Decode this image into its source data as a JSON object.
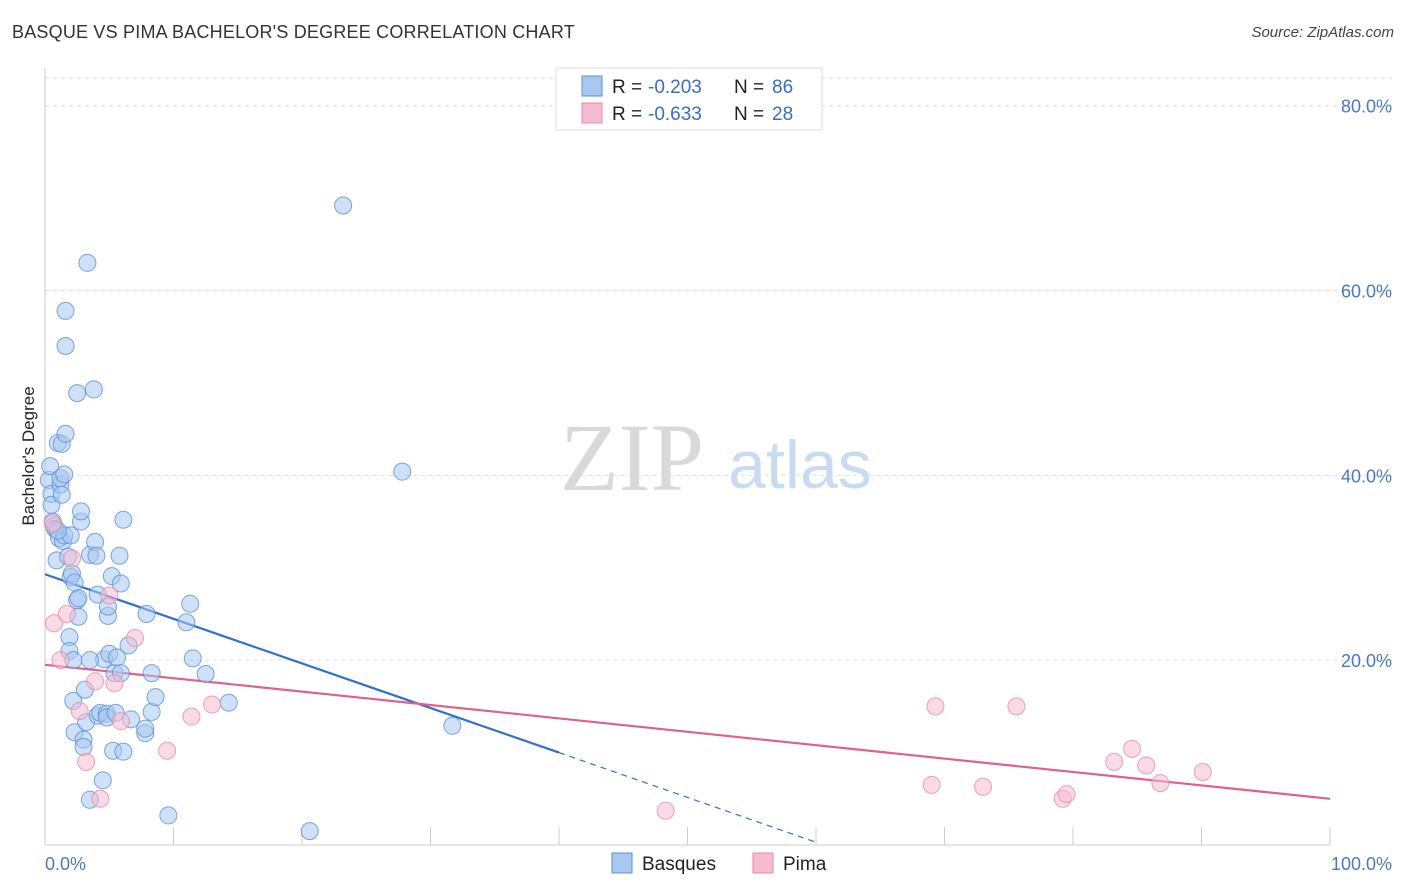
{
  "title": "BASQUE VS PIMA BACHELOR'S DEGREE CORRELATION CHART",
  "source": "Source: ZipAtlas.com",
  "watermark": {
    "zip": "ZIP",
    "atlas": "atlas"
  },
  "legend": {
    "r_label": "R =",
    "n_label": "N =",
    "rows": [
      {
        "r": "-0.203",
        "n": "86"
      },
      {
        "r": "-0.633",
        "n": "28"
      }
    ]
  },
  "colors": {
    "basques_fill": "#a8c8f0",
    "basques_stroke": "#5b8fd8",
    "basques_line": "#2f6fd0",
    "pima_fill": "#f5bccf",
    "pima_stroke": "#e88aaa",
    "pima_line": "#e0608a",
    "grid": "#dddddd",
    "axis_text": "#4a78c8"
  },
  "chart_data": {
    "type": "scatter",
    "title": "BASQUE VS PIMA BACHELOR'S DEGREE CORRELATION CHART",
    "xlabel": "",
    "ylabel": "Bachelor's Degree",
    "xlim": [
      0,
      100
    ],
    "ylim": [
      0,
      83
    ],
    "x_tick_labels": [
      "0.0%",
      "100.0%"
    ],
    "y_ticks": [
      20,
      40,
      60,
      80
    ],
    "y_tick_labels": [
      "20.0%",
      "40.0%",
      "60.0%",
      "80.0%"
    ],
    "grid": true,
    "legend_position": "bottom",
    "series": [
      {
        "name": "Basques",
        "points": [
          [
            0.3,
            39.5
          ],
          [
            0.4,
            41.0
          ],
          [
            0.5,
            38.0
          ],
          [
            0.5,
            36.8
          ],
          [
            0.6,
            35.0
          ],
          [
            0.7,
            34.5
          ],
          [
            0.8,
            34.2
          ],
          [
            0.9,
            30.8
          ],
          [
            1.0,
            43.5
          ],
          [
            1.1,
            33.2
          ],
          [
            1.2,
            39.0
          ],
          [
            1.2,
            39.7
          ],
          [
            1.3,
            37.9
          ],
          [
            1.3,
            43.4
          ],
          [
            1.4,
            32.9
          ],
          [
            1.5,
            40.1
          ],
          [
            1.5,
            33.5
          ],
          [
            1.6,
            44.5
          ],
          [
            1.6,
            57.8
          ],
          [
            1.6,
            54.0
          ],
          [
            1.8,
            31.2
          ],
          [
            1.9,
            22.5
          ],
          [
            1.9,
            21.0
          ],
          [
            2.0,
            29.0
          ],
          [
            2.0,
            33.5
          ],
          [
            2.1,
            29.4
          ],
          [
            2.2,
            20.0
          ],
          [
            2.2,
            15.6
          ],
          [
            2.3,
            28.4
          ],
          [
            2.3,
            12.2
          ],
          [
            2.5,
            26.5
          ],
          [
            2.5,
            48.9
          ],
          [
            2.6,
            26.7
          ],
          [
            2.6,
            24.7
          ],
          [
            2.8,
            35.0
          ],
          [
            2.8,
            36.1
          ],
          [
            3.0,
            11.4
          ],
          [
            3.0,
            10.6
          ],
          [
            3.1,
            16.8
          ],
          [
            3.2,
            13.3
          ],
          [
            3.3,
            63.0
          ],
          [
            3.5,
            31.4
          ],
          [
            3.5,
            4.9
          ],
          [
            3.8,
            49.3
          ],
          [
            3.9,
            32.8
          ],
          [
            4.0,
            31.3
          ],
          [
            4.1,
            14.0
          ],
          [
            4.1,
            27.1
          ],
          [
            4.3,
            14.3
          ],
          [
            4.5,
            7.0
          ],
          [
            4.6,
            20.1
          ],
          [
            4.8,
            14.2
          ],
          [
            4.8,
            13.8
          ],
          [
            4.9,
            24.8
          ],
          [
            4.9,
            25.8
          ],
          [
            5.0,
            20.7
          ],
          [
            5.2,
            29.1
          ],
          [
            5.3,
            10.2
          ],
          [
            5.4,
            18.6
          ],
          [
            5.5,
            14.3
          ],
          [
            5.6,
            20.3
          ],
          [
            5.8,
            31.3
          ],
          [
            5.9,
            28.3
          ],
          [
            5.9,
            18.6
          ],
          [
            6.1,
            10.1
          ],
          [
            6.1,
            35.2
          ],
          [
            6.5,
            21.6
          ],
          [
            6.7,
            13.6
          ],
          [
            7.8,
            12.1
          ],
          [
            7.8,
            12.6
          ],
          [
            7.9,
            25.0
          ],
          [
            8.3,
            14.4
          ],
          [
            8.3,
            18.6
          ],
          [
            8.6,
            16.0
          ],
          [
            9.6,
            3.2
          ],
          [
            11.0,
            24.1
          ],
          [
            11.3,
            26.1
          ],
          [
            11.5,
            20.2
          ],
          [
            12.5,
            18.5
          ],
          [
            14.3,
            15.4
          ],
          [
            20.6,
            1.5
          ],
          [
            23.2,
            69.2
          ],
          [
            27.8,
            40.4
          ],
          [
            31.7,
            12.9
          ],
          [
            3.5,
            20.0
          ],
          [
            1.0,
            34.0
          ]
        ]
      },
      {
        "name": "Pima",
        "points": [
          [
            0.7,
            24.0
          ],
          [
            1.2,
            20.0
          ],
          [
            1.7,
            25.0
          ],
          [
            2.1,
            31.0
          ],
          [
            2.7,
            14.5
          ],
          [
            3.2,
            9.0
          ],
          [
            3.9,
            17.7
          ],
          [
            4.3,
            5.0
          ],
          [
            5.0,
            27.0
          ],
          [
            5.4,
            17.5
          ],
          [
            5.9,
            13.4
          ],
          [
            7.0,
            22.4
          ],
          [
            9.5,
            10.2
          ],
          [
            11.4,
            13.9
          ],
          [
            13.0,
            15.2
          ],
          [
            48.3,
            3.7
          ],
          [
            69.0,
            6.5
          ],
          [
            69.3,
            15.0
          ],
          [
            73.0,
            6.3
          ],
          [
            75.6,
            15.0
          ],
          [
            79.2,
            5.0
          ],
          [
            79.5,
            5.5
          ],
          [
            83.2,
            9.0
          ],
          [
            84.6,
            10.4
          ],
          [
            85.7,
            8.6
          ],
          [
            86.8,
            6.7
          ],
          [
            90.1,
            7.9
          ],
          [
            0.6,
            34.8
          ]
        ]
      }
    ],
    "trendlines": [
      {
        "series": "Basques",
        "solid": [
          [
            0,
            29.3
          ],
          [
            40,
            10.0
          ]
        ],
        "dashed": [
          [
            40,
            10.0
          ],
          [
            60,
            0.3
          ]
        ]
      },
      {
        "series": "Pima",
        "solid": [
          [
            0,
            19.5
          ],
          [
            100,
            5.0
          ]
        ]
      }
    ]
  }
}
